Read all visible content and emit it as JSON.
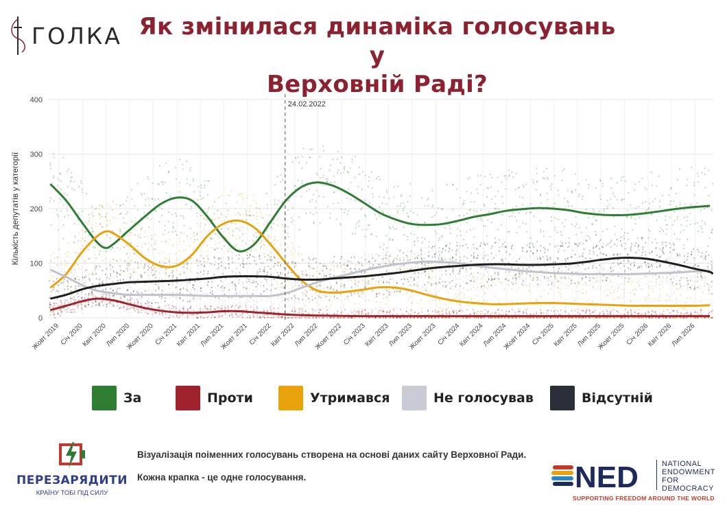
{
  "header": {
    "logo_text": "ГОЛКА",
    "title_line1": "Як змінилася динаміка голосувань у",
    "title_line2": "Верховній Раді?"
  },
  "colors": {
    "za": "#2e7d32",
    "proty": "#a0222c",
    "utrymavsia": "#e8a20c",
    "ne_holosuvav": "#c9cbd6",
    "vidsutnii": "#1e1e1e",
    "title": "#8c2230"
  },
  "chart_data": {
    "type": "scatter",
    "title": "",
    "xlabel": "",
    "ylabel": "Кількість депутатів у категорії",
    "ylim": [
      0,
      400
    ],
    "yticks": [
      0,
      100,
      200,
      300,
      400
    ],
    "xlim": [
      "2019-08-20",
      "2026-09-10"
    ],
    "xticks": [
      {
        "date": "2019-10-01",
        "label": "Жовт 2019"
      },
      {
        "date": "2020-01-01",
        "label": "Січ 2020"
      },
      {
        "date": "2020-04-01",
        "label": "Квіт 2020"
      },
      {
        "date": "2020-07-01",
        "label": "Лип 2020"
      },
      {
        "date": "2020-10-01",
        "label": "Жовт 2020"
      },
      {
        "date": "2021-01-01",
        "label": "Січ 2021"
      },
      {
        "date": "2021-04-01",
        "label": "Квіт 2021"
      },
      {
        "date": "2021-07-01",
        "label": "Лип 2021"
      },
      {
        "date": "2021-10-01",
        "label": "Жовт 2021"
      },
      {
        "date": "2022-01-01",
        "label": "Січ 2022"
      },
      {
        "date": "2022-04-01",
        "label": "Квіт 2022"
      },
      {
        "date": "2022-07-01",
        "label": "Лип 2022"
      },
      {
        "date": "2022-10-01",
        "label": "Жовт 2022"
      },
      {
        "date": "2023-01-01",
        "label": "Січ 2023"
      },
      {
        "date": "2023-04-01",
        "label": "Квіт 2023"
      },
      {
        "date": "2023-07-01",
        "label": "Лип 2023"
      },
      {
        "date": "2023-10-01",
        "label": "Жовт 2023"
      },
      {
        "date": "2024-01-01",
        "label": "Січ 2024"
      },
      {
        "date": "2024-04-01",
        "label": "Квіт 2024"
      },
      {
        "date": "2024-07-01",
        "label": "Лип 2024"
      },
      {
        "date": "2024-10-01",
        "label": "Жовт 2024"
      },
      {
        "date": "2025-01-01",
        "label": "Січ 2025"
      },
      {
        "date": "2025-04-01",
        "label": "Квіт 2025"
      },
      {
        "date": "2025-07-01",
        "label": "Лип 2025"
      },
      {
        "date": "2025-10-01",
        "label": "Жовт 2025"
      },
      {
        "date": "2026-01-01",
        "label": "Січ 2026"
      },
      {
        "date": "2026-04-01",
        "label": "Квіт 2026"
      },
      {
        "date": "2026-07-01",
        "label": "Лип 2026"
      }
    ],
    "grid": true,
    "annotations": [
      {
        "date": "2022-02-24",
        "label": "24.02.2022",
        "style": "dashed-vertical"
      }
    ],
    "trend_series": [
      {
        "name": "За",
        "color": "#2e7d32",
        "points": [
          [
            "2019-08-29",
            245
          ],
          [
            "2019-10-29",
            215
          ],
          [
            "2019-12-29",
            175
          ],
          [
            "2020-02-23",
            140
          ],
          [
            "2020-03-29",
            128
          ],
          [
            "2020-04-29",
            135
          ],
          [
            "2020-06-28",
            160
          ],
          [
            "2020-08-28",
            185
          ],
          [
            "2020-10-28",
            208
          ],
          [
            "2020-12-28",
            220
          ],
          [
            "2021-02-27",
            215
          ],
          [
            "2021-04-29",
            185
          ],
          [
            "2021-06-28",
            148
          ],
          [
            "2021-08-28",
            122
          ],
          [
            "2021-10-28",
            135
          ],
          [
            "2021-12-28",
            175
          ],
          [
            "2022-02-27",
            215
          ],
          [
            "2022-04-29",
            240
          ],
          [
            "2022-06-28",
            248
          ],
          [
            "2022-08-28",
            242
          ],
          [
            "2022-10-28",
            228
          ],
          [
            "2022-12-28",
            210
          ],
          [
            "2023-02-27",
            192
          ],
          [
            "2023-04-29",
            180
          ],
          [
            "2023-06-28",
            172
          ],
          [
            "2023-08-28",
            170
          ],
          [
            "2023-10-28",
            172
          ],
          [
            "2023-12-28",
            178
          ],
          [
            "2024-02-27",
            185
          ],
          [
            "2024-04-28",
            190
          ],
          [
            "2024-06-28",
            196
          ],
          [
            "2024-08-28",
            199
          ],
          [
            "2024-10-28",
            201
          ],
          [
            "2024-12-28",
            200
          ],
          [
            "2025-02-27",
            197
          ],
          [
            "2025-04-28",
            192
          ],
          [
            "2025-06-28",
            189
          ],
          [
            "2025-08-28",
            188
          ],
          [
            "2025-10-28",
            189
          ],
          [
            "2025-12-28",
            192
          ],
          [
            "2026-02-27",
            196
          ],
          [
            "2026-04-28",
            200
          ],
          [
            "2026-06-28",
            203
          ],
          [
            "2026-08-28",
            205
          ]
        ]
      },
      {
        "name": "Проти",
        "color": "#a0222c",
        "points": [
          [
            "2019-08-29",
            14
          ],
          [
            "2019-10-29",
            22
          ],
          [
            "2019-12-29",
            30
          ],
          [
            "2020-02-23",
            35
          ],
          [
            "2020-04-29",
            32
          ],
          [
            "2020-06-28",
            25
          ],
          [
            "2020-08-28",
            18
          ],
          [
            "2020-10-28",
            13
          ],
          [
            "2020-12-28",
            10
          ],
          [
            "2021-02-27",
            9
          ],
          [
            "2021-04-29",
            10
          ],
          [
            "2021-06-28",
            12
          ],
          [
            "2021-08-28",
            12
          ],
          [
            "2021-10-28",
            10
          ],
          [
            "2021-12-28",
            8
          ],
          [
            "2022-02-27",
            6
          ],
          [
            "2022-06-28",
            4
          ],
          [
            "2022-12-28",
            3
          ],
          [
            "2023-06-28",
            3
          ],
          [
            "2023-12-28",
            3
          ],
          [
            "2024-06-28",
            3
          ],
          [
            "2024-12-28",
            3
          ],
          [
            "2025-06-28",
            3
          ],
          [
            "2025-12-28",
            3
          ],
          [
            "2026-08-28",
            3
          ]
        ]
      },
      {
        "name": "Утримався",
        "color": "#e8a20c",
        "points": [
          [
            "2019-08-29",
            55
          ],
          [
            "2019-10-29",
            80
          ],
          [
            "2019-12-29",
            120
          ],
          [
            "2020-02-23",
            148
          ],
          [
            "2020-03-29",
            158
          ],
          [
            "2020-04-29",
            155
          ],
          [
            "2020-06-28",
            135
          ],
          [
            "2020-08-28",
            110
          ],
          [
            "2020-10-28",
            95
          ],
          [
            "2020-12-28",
            95
          ],
          [
            "2021-02-27",
            115
          ],
          [
            "2021-04-29",
            150
          ],
          [
            "2021-06-28",
            172
          ],
          [
            "2021-08-28",
            178
          ],
          [
            "2021-10-28",
            165
          ],
          [
            "2021-12-28",
            135
          ],
          [
            "2022-02-27",
            100
          ],
          [
            "2022-04-29",
            68
          ],
          [
            "2022-06-28",
            50
          ],
          [
            "2022-08-28",
            46
          ],
          [
            "2022-10-28",
            48
          ],
          [
            "2022-12-28",
            52
          ],
          [
            "2023-02-27",
            56
          ],
          [
            "2023-04-29",
            55
          ],
          [
            "2023-06-28",
            50
          ],
          [
            "2023-08-28",
            42
          ],
          [
            "2023-10-28",
            35
          ],
          [
            "2023-12-28",
            30
          ],
          [
            "2024-02-27",
            27
          ],
          [
            "2024-04-28",
            25
          ],
          [
            "2024-06-28",
            25
          ],
          [
            "2024-08-28",
            26
          ],
          [
            "2024-10-28",
            27
          ],
          [
            "2024-12-28",
            27
          ],
          [
            "2025-02-27",
            26
          ],
          [
            "2025-04-28",
            25
          ],
          [
            "2025-06-28",
            24
          ],
          [
            "2025-08-28",
            23
          ],
          [
            "2025-10-28",
            22
          ],
          [
            "2025-12-28",
            22
          ],
          [
            "2026-02-27",
            22
          ],
          [
            "2026-04-28",
            22
          ],
          [
            "2026-06-28",
            22
          ],
          [
            "2026-08-28",
            23
          ]
        ]
      },
      {
        "name": "Не голосував",
        "color": "#c0c2cc",
        "points": [
          [
            "2019-08-29",
            88
          ],
          [
            "2019-10-29",
            75
          ],
          [
            "2019-12-29",
            60
          ],
          [
            "2020-02-23",
            50
          ],
          [
            "2020-04-29",
            45
          ],
          [
            "2020-06-28",
            42
          ],
          [
            "2020-08-28",
            42
          ],
          [
            "2020-10-28",
            42
          ],
          [
            "2020-12-28",
            42
          ],
          [
            "2021-02-27",
            41
          ],
          [
            "2021-04-29",
            40
          ],
          [
            "2021-06-28",
            40
          ],
          [
            "2021-08-28",
            40
          ],
          [
            "2021-10-28",
            40
          ],
          [
            "2021-12-28",
            40
          ],
          [
            "2022-02-27",
            45
          ],
          [
            "2022-04-29",
            55
          ],
          [
            "2022-06-28",
            65
          ],
          [
            "2022-08-28",
            73
          ],
          [
            "2022-10-28",
            80
          ],
          [
            "2022-12-28",
            87
          ],
          [
            "2023-02-27",
            93
          ],
          [
            "2023-04-29",
            98
          ],
          [
            "2023-06-28",
            101
          ],
          [
            "2023-08-28",
            103
          ],
          [
            "2023-10-28",
            102
          ],
          [
            "2023-12-28",
            100
          ],
          [
            "2024-02-27",
            96
          ],
          [
            "2024-04-28",
            92
          ],
          [
            "2024-06-28",
            89
          ],
          [
            "2024-08-28",
            86
          ],
          [
            "2024-10-28",
            84
          ],
          [
            "2024-12-28",
            82
          ],
          [
            "2025-02-27",
            81
          ],
          [
            "2025-04-28",
            80
          ],
          [
            "2025-06-28",
            80
          ],
          [
            "2025-08-28",
            80
          ],
          [
            "2025-10-28",
            80
          ],
          [
            "2025-12-28",
            81
          ],
          [
            "2026-02-27",
            82
          ],
          [
            "2026-04-28",
            83
          ],
          [
            "2026-06-28",
            85
          ],
          [
            "2026-08-28",
            86
          ]
        ]
      },
      {
        "name": "Відсутній",
        "color": "#1e1e1e",
        "points": [
          [
            "2019-08-29",
            35
          ],
          [
            "2019-10-29",
            42
          ],
          [
            "2019-12-29",
            52
          ],
          [
            "2020-02-23",
            58
          ],
          [
            "2020-04-29",
            62
          ],
          [
            "2020-06-28",
            65
          ],
          [
            "2020-08-28",
            66
          ],
          [
            "2020-10-28",
            67
          ],
          [
            "2020-12-28",
            68
          ],
          [
            "2021-02-27",
            70
          ],
          [
            "2021-04-29",
            72
          ],
          [
            "2021-06-28",
            75
          ],
          [
            "2021-08-28",
            76
          ],
          [
            "2021-10-28",
            76
          ],
          [
            "2021-12-28",
            75
          ],
          [
            "2022-02-27",
            72
          ],
          [
            "2022-04-29",
            70
          ],
          [
            "2022-06-28",
            70
          ],
          [
            "2022-08-28",
            72
          ],
          [
            "2022-10-28",
            74
          ],
          [
            "2022-12-28",
            76
          ],
          [
            "2023-02-27",
            79
          ],
          [
            "2023-04-29",
            82
          ],
          [
            "2023-06-28",
            86
          ],
          [
            "2023-08-28",
            90
          ],
          [
            "2023-10-28",
            93
          ],
          [
            "2023-12-28",
            95
          ],
          [
            "2024-02-27",
            97
          ],
          [
            "2024-04-28",
            98
          ],
          [
            "2024-06-28",
            98
          ],
          [
            "2024-08-28",
            97
          ],
          [
            "2024-10-28",
            97
          ],
          [
            "2024-12-28",
            98
          ],
          [
            "2025-02-27",
            99
          ],
          [
            "2025-04-28",
            102
          ],
          [
            "2025-06-28",
            106
          ],
          [
            "2025-08-28",
            109
          ],
          [
            "2025-10-28",
            110
          ],
          [
            "2025-12-28",
            108
          ],
          [
            "2026-02-27",
            103
          ],
          [
            "2026-04-28",
            97
          ],
          [
            "2026-06-28",
            90
          ],
          [
            "2026-08-28",
            84
          ],
          [
            "2026-09-08",
            80
          ]
        ]
      }
    ],
    "legend_placement": "bottom"
  },
  "legend": [
    {
      "label": "За",
      "color": "#2e7d32"
    },
    {
      "label": "Проти",
      "color": "#a0222c"
    },
    {
      "label": "Утримався",
      "color": "#e8a20c"
    },
    {
      "label": "Не голосував",
      "color": "#c9cbd6"
    },
    {
      "label": "Відсутній",
      "color": "#2a2f3a"
    }
  ],
  "footer": {
    "partner_logo_name": "ПЕРЕЗАРЯДИТИ",
    "partner_logo_tagline": "КРАЇНУ ТОБІ ПІД СИЛУ",
    "note_1": "Візуалізація поіменних голосувань створена на основі даних сайту Верховної Ради.",
    "note_2": "Кожна крапка - це одне голосування.",
    "ned_acronym": "NED",
    "ned_line1": "NATIONAL",
    "ned_line2": "ENDOWMENT",
    "ned_line3": "FOR",
    "ned_line4": "DEMOCRACY",
    "ned_tagline": "SUPPORTING FREEDOM AROUND THE WORLD"
  }
}
